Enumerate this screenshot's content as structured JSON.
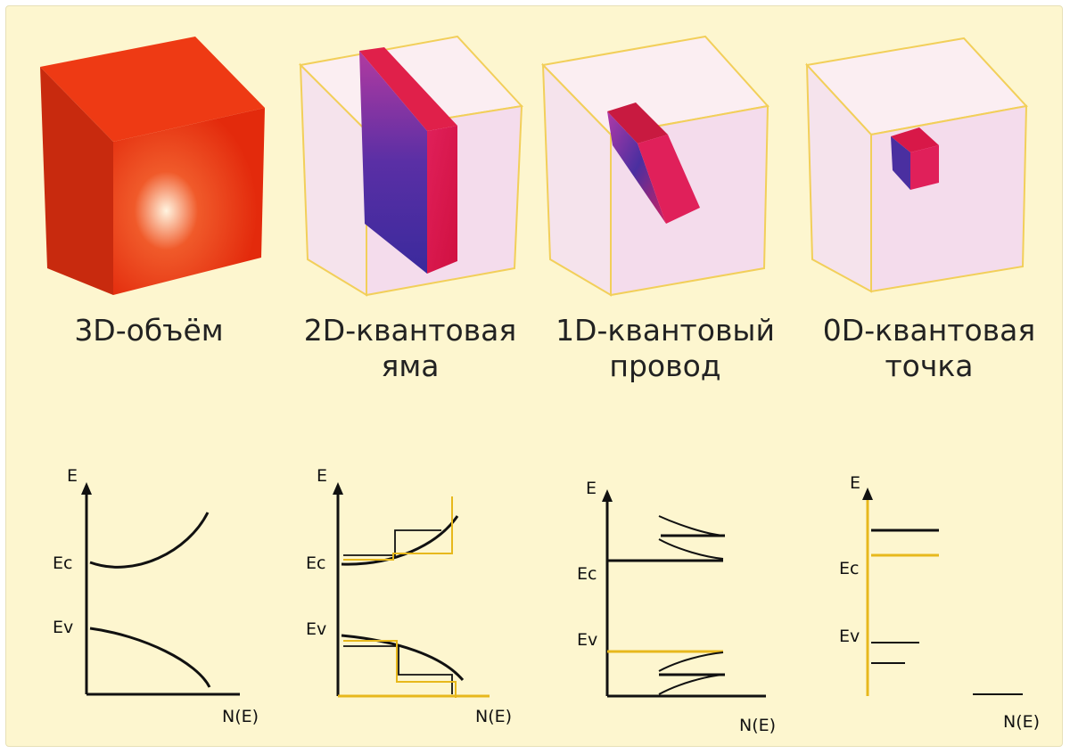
{
  "panels": [
    {
      "caption_line1": "3D-объём",
      "caption_line2": "",
      "labels": {
        "e": "E",
        "ec": "Ec",
        "ev": "Ev",
        "ne": "N(E)"
      }
    },
    {
      "caption_line1": "2D-квантовая",
      "caption_line2": "яма",
      "labels": {
        "e": "E",
        "ec": "Ec",
        "ev": "Ev",
        "ne": "N(E)"
      }
    },
    {
      "caption_line1": "1D-квантовый",
      "caption_line2": "провод",
      "labels": {
        "e": "E",
        "ec": "Ec",
        "ev": "Ev",
        "ne": "N(E)"
      }
    },
    {
      "caption_line1": "0D-квантовая",
      "caption_line2": "точка",
      "labels": {
        "e": "E",
        "ec": "Ec",
        "ev": "Ev",
        "ne": "N(E)"
      }
    }
  ],
  "colors": {
    "background": "#fdf6cf",
    "bulk_red": "#e8310f",
    "confined_red": "#e0204a",
    "confined_blue": "#4a2fa0",
    "glass": "#f4dcec",
    "glass_edge": "#f2cf5a",
    "curve": "#111111",
    "yellow_line": "#e7b81c"
  }
}
